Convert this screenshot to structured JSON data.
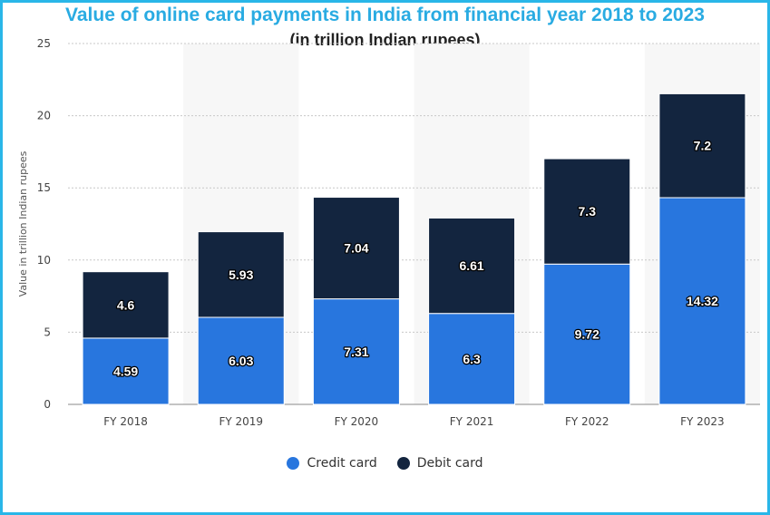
{
  "chart_data": {
    "type": "bar",
    "stacked": true,
    "title": "Value of online card payments in India from financial year 2018 to 2023",
    "subtitle": "(in trillion Indian rupees)",
    "xlabel": "",
    "ylabel": "Value in trillion Indian rupees",
    "ylim": [
      0,
      25
    ],
    "yticks": [
      0,
      5,
      10,
      15,
      20,
      25
    ],
    "grid": true,
    "legend_position": "bottom",
    "categories": [
      "FY 2018",
      "FY 2019",
      "FY 2020",
      "FY 2021",
      "FY 2022",
      "FY 2023"
    ],
    "series": [
      {
        "name": "Credit card",
        "color": "#2876de",
        "values": [
          4.59,
          6.03,
          7.31,
          6.3,
          9.72,
          14.32
        ]
      },
      {
        "name": "Debit card",
        "color": "#13253f",
        "values": [
          4.6,
          5.93,
          7.04,
          6.61,
          7.3,
          7.2
        ]
      }
    ]
  }
}
